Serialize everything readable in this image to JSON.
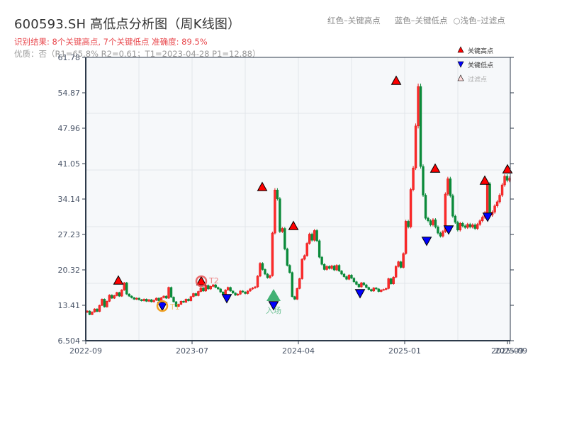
{
  "header": {
    "title": "600593.SH 高低点分析图（周K线图）",
    "result_line": "识别结果: 8个关键高点, 7个关键低点  准确度: 89.5%",
    "quality_line": "优质：否（R1=65.8%  R2=0.61；T1=2023-04-28 P1=12.88）"
  },
  "top_legend": {
    "red": "红色–关键高点",
    "blue": "蓝色–关键低点",
    "light": "○浅色–过滤点"
  },
  "colors": {
    "up": "#e01b1b",
    "down": "#0b8a3a",
    "high_marker": "#ff0000",
    "low_marker": "#0000ff",
    "t1_ring": "#f0a020",
    "t2_ring": "#e85050",
    "entry_marker": "#2fa865",
    "plot_bg": "#f6f8fa",
    "grid": "#e2e6ea",
    "axis": "#2d3a4a"
  },
  "chart_data": {
    "type": "candlestick",
    "title": "600593.SH 高低点分析图（周K线图）",
    "xlabel": "",
    "ylabel": "",
    "ylim": [
      6.504,
      61.78
    ],
    "yticks": [
      "6.504",
      "13.41",
      "20.32",
      "27.23",
      "34.14",
      "41.05",
      "47.96",
      "54.87",
      "61.78"
    ],
    "xticks": [
      "2022-09",
      "2023-07",
      "2024-04",
      "2025-01",
      "2025-09"
    ],
    "xtick_overlap_label": "2025-09",
    "grid": true,
    "legend": {
      "position": "upper right",
      "entries": [
        "关键高点",
        "关键低点",
        "过滤点"
      ]
    },
    "weekly_close": [
      12.3,
      11.6,
      12.1,
      12.7,
      12.2,
      13.4,
      14.6,
      13.1,
      14.2,
      15.4,
      14.8,
      15.3,
      15.9,
      15.2,
      16.4,
      17.8,
      15.6,
      15.2,
      14.9,
      14.6,
      14.8,
      14.5,
      14.3,
      14.6,
      14.2,
      14.5,
      14.1,
      14.4,
      14.8,
      14.3,
      14.9,
      15.2,
      14.8,
      16.9,
      15.0,
      14.1,
      13.2,
      13.6,
      14.2,
      14.0,
      14.6,
      14.3,
      15.1,
      15.7,
      15.3,
      16.1,
      16.8,
      16.2,
      17.3,
      16.6,
      17.1,
      17.4,
      16.9,
      16.6,
      16.0,
      15.6,
      16.4,
      16.9,
      16.2,
      15.8,
      15.4,
      15.6,
      16.2,
      16.0,
      15.7,
      16.2,
      16.6,
      16.8,
      17.0,
      19.1,
      21.6,
      20.4,
      19.5,
      18.8,
      19.2,
      27.5,
      35.9,
      34.2,
      27.8,
      28.4,
      24.4,
      21.2,
      19.8,
      15.1,
      14.6,
      16.7,
      18.6,
      22.4,
      23.1,
      25.5,
      27.3,
      26.1,
      28.0,
      26.0,
      22.8,
      21.4,
      20.4,
      21.0,
      20.6,
      21.1,
      20.3,
      21.2,
      20.1,
      19.5,
      19.0,
      18.5,
      19.3,
      18.7,
      18.0,
      17.5,
      17.0,
      17.8,
      17.4,
      16.9,
      16.5,
      16.2,
      16.8,
      16.6,
      16.1,
      16.4,
      16.5,
      16.7,
      18.6,
      17.6,
      18.9,
      21.0,
      21.9,
      20.8,
      23.5,
      29.8,
      28.7,
      36.0,
      40.2,
      48.4,
      56.1,
      40.5,
      34.9,
      30.4,
      29.9,
      29.1,
      30.1,
      28.7,
      27.5,
      26.9,
      27.8,
      35.1,
      38.1,
      34.8,
      30.8,
      29.6,
      28.1,
      29.4,
      28.9,
      28.6,
      29.2,
      28.7,
      29.1,
      28.4,
      29.2,
      29.9,
      30.6,
      31.5,
      37.1,
      31.0,
      31.6,
      32.8,
      33.6,
      34.9,
      36.9,
      38.6,
      37.8,
      38.2
    ],
    "key_highs": [
      {
        "label": "H1",
        "date": "2022-12",
        "price": 18.0
      },
      {
        "label": "T2",
        "date": "2023-08",
        "price": 17.7
      },
      {
        "label": "H3",
        "date": "2024-01",
        "price": 36.5
      },
      {
        "label": "H4",
        "date": "2024-03",
        "price": 28.6
      },
      {
        "label": "H5",
        "date": "2024-12",
        "price": 57.1
      },
      {
        "label": "H6",
        "date": "2025-02",
        "price": 39.6
      },
      {
        "label": "H7",
        "date": "2025-06",
        "price": 37.3
      },
      {
        "label": "H8",
        "date": "2025-09",
        "price": 39.4
      }
    ],
    "key_lows": [
      {
        "label": "T1",
        "date": "2023-04-28",
        "price": 12.88
      },
      {
        "label": "L2",
        "date": "2023-10",
        "price": 15.1
      },
      {
        "label": "L3",
        "date": "2024-02",
        "price": 13.7
      },
      {
        "label": "L4",
        "date": "2024-08",
        "price": 15.5
      },
      {
        "label": "L5",
        "date": "2025-01",
        "price": 25.9
      },
      {
        "label": "L6",
        "date": "2025-03",
        "price": 28.0
      },
      {
        "label": "L7",
        "date": "2025-07",
        "price": 30.8
      }
    ],
    "annotations": [
      {
        "text": "T1",
        "price": 12.88
      },
      {
        "text": "T2",
        "price": 17.7
      },
      {
        "text": "入场",
        "price": 15.2
      }
    ]
  },
  "legend_box": {
    "high": "关键高点",
    "low": "关键低点",
    "filtered": "过滤点"
  },
  "annotation_labels": {
    "t1": "T1",
    "t2": "T2",
    "entry": "入场"
  }
}
